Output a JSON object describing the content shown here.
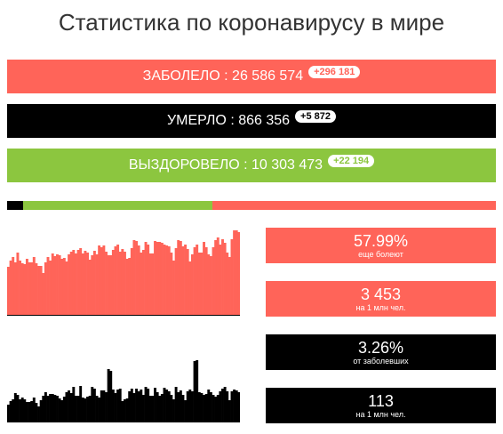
{
  "title": "Статистика по коронавирусу в мире",
  "summary": {
    "cases": {
      "label": "ЗАБОЛЕЛО : 26 586 574",
      "delta": "+296 181"
    },
    "deaths": {
      "label": "УМЕРЛО : 866 356",
      "delta": "+5 872"
    },
    "recovered": {
      "label": "ВЫЗДОРОВЕЛО : 10 303 473",
      "delta": "+22 194"
    }
  },
  "colors": {
    "cases": "#ff6459",
    "deaths": "#000000",
    "recovered": "#8cc63f"
  },
  "share_bar": {
    "deaths_fraction": 0.033,
    "recovered_fraction": 0.387,
    "active_fraction": 0.58
  },
  "stats": [
    {
      "value": "57.99%",
      "caption": "еще болеют"
    },
    {
      "value": "3 453",
      "caption": "на 1 млн чел."
    },
    {
      "value": "3.26%",
      "caption": "от заболевших"
    },
    {
      "value": "113",
      "caption": "на 1 млн чел."
    }
  ],
  "chart_data": [
    {
      "type": "bar",
      "title": "",
      "series": [
        {
          "values": [
            55,
            62,
            66,
            60,
            71,
            62,
            59,
            58,
            64,
            60,
            60,
            66,
            59,
            56,
            56,
            48,
            60,
            66,
            62,
            70,
            67,
            69,
            68,
            64,
            65,
            61,
            69,
            72,
            74,
            70,
            74,
            76,
            70,
            73,
            71,
            63,
            68,
            73,
            69,
            79,
            77,
            79,
            72,
            68,
            68,
            74,
            78,
            80,
            72,
            75,
            72,
            64,
            65,
            76,
            85,
            84,
            79,
            71,
            74,
            83,
            80,
            70,
            70,
            84,
            83,
            83,
            82,
            80,
            79,
            78,
            71,
            62,
            76,
            85,
            84,
            78,
            80,
            75,
            61,
            69,
            77,
            80,
            71,
            71,
            83,
            77,
            69,
            67,
            77,
            85,
            88,
            80,
            86,
            82,
            71,
            66,
            86,
            96,
            96,
            94
          ]
        }
      ]
    },
    {
      "type": "bar",
      "title": "",
      "series": [
        {
          "values": [
            20,
            24,
            26,
            33,
            31,
            26,
            28,
            26,
            23,
            23,
            24,
            28,
            22,
            18,
            25,
            30,
            34,
            30,
            32,
            32,
            31,
            30,
            27,
            25,
            29,
            34,
            36,
            33,
            40,
            30,
            30,
            41,
            28,
            27,
            29,
            30,
            40,
            38,
            30,
            28,
            36,
            36,
            34,
            60,
            58,
            37,
            33,
            37,
            38,
            24,
            26,
            27,
            35,
            38,
            33,
            38,
            35,
            37,
            31,
            40,
            38,
            30,
            30,
            39,
            34,
            30,
            32,
            39,
            37,
            35,
            31,
            26,
            40,
            34,
            36,
            31,
            25,
            35,
            37,
            35,
            69,
            70,
            34,
            33,
            31,
            32,
            37,
            34,
            31,
            29,
            31,
            35,
            38,
            40,
            35,
            25,
            35,
            37,
            36,
            34
          ]
        }
      ]
    }
  ]
}
